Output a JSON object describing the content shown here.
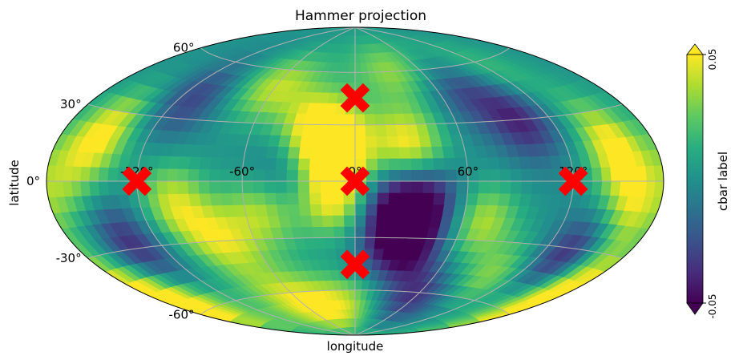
{
  "chart_data": {
    "type": "heatmap",
    "projection": "hammer",
    "title": "Hammer projection",
    "xlabel": "longitude",
    "ylabel": "latitude",
    "x_ticks": [
      -120,
      -60,
      0,
      60,
      120
    ],
    "x_tick_labels": [
      "-120°",
      "-60°",
      "0°",
      "60°",
      "120°"
    ],
    "y_ticks": [
      60,
      30,
      0,
      -30,
      -60
    ],
    "y_tick_labels": [
      "60°",
      "30°",
      "0°",
      "-30°",
      "-60°"
    ],
    "xlim": [
      -180,
      180
    ],
    "ylim": [
      -90,
      90
    ],
    "grid": true,
    "colormap": "viridis",
    "colorbar": {
      "label": "cbar label",
      "min": -0.05,
      "max": 0.05,
      "tick_labels": [
        "0.05",
        "-0.05"
      ],
      "extend": "both",
      "placement": "right"
    },
    "markers": {
      "shape": "X",
      "color": "#ff0000",
      "points": [
        {
          "lon": -120,
          "lat": 0
        },
        {
          "lon": 0,
          "lat": 0
        },
        {
          "lon": 120,
          "lat": 0
        },
        {
          "lon": 0,
          "lat": 45
        },
        {
          "lon": 0,
          "lat": -45
        }
      ]
    },
    "field": [
      {
        "lon": -150,
        "lat": 20,
        "v": 0.05
      },
      {
        "lon": -110,
        "lat": 40,
        "v": -0.03
      },
      {
        "lon": -60,
        "lat": 50,
        "v": 0.04
      },
      {
        "lon": -20,
        "lat": 30,
        "v": 0.05
      },
      {
        "lon": -10,
        "lat": 15,
        "v": 0.05
      },
      {
        "lon": 30,
        "lat": 20,
        "v": 0.05
      },
      {
        "lon": 40,
        "lat": 60,
        "v": 0.04
      },
      {
        "lon": 70,
        "lat": 50,
        "v": -0.03
      },
      {
        "lon": 100,
        "lat": 30,
        "v": -0.04
      },
      {
        "lon": 150,
        "lat": 15,
        "v": 0.05
      },
      {
        "lon": 160,
        "lat": -10,
        "v": 0.04
      },
      {
        "lon": -100,
        "lat": -10,
        "v": 0.04
      },
      {
        "lon": -50,
        "lat": -15,
        "v": 0.04
      },
      {
        "lon": -10,
        "lat": -10,
        "v": 0.05
      },
      {
        "lon": 20,
        "lat": -15,
        "v": -0.05
      },
      {
        "lon": 40,
        "lat": -10,
        "v": -0.04
      },
      {
        "lon": 70,
        "lat": -20,
        "v": 0.04
      },
      {
        "lon": 30,
        "lat": -35,
        "v": -0.05
      },
      {
        "lon": -140,
        "lat": -30,
        "v": -0.04
      },
      {
        "lon": -80,
        "lat": -30,
        "v": 0.04
      },
      {
        "lon": 140,
        "lat": -35,
        "v": -0.05
      },
      {
        "lon": 100,
        "lat": -50,
        "v": 0.04
      },
      {
        "lon": 60,
        "lat": -65,
        "v": -0.05
      },
      {
        "lon": -160,
        "lat": -55,
        "v": 0.05
      },
      {
        "lon": 165,
        "lat": -45,
        "v": 0.05
      },
      {
        "lon": -60,
        "lat": -65,
        "v": 0.04
      },
      {
        "lon": 0,
        "lat": -70,
        "v": 0.04
      },
      {
        "lon": -170,
        "lat": 0,
        "v": 0.03
      },
      {
        "lon": 120,
        "lat": 55,
        "v": 0.02
      },
      {
        "lon": -40,
        "lat": 0,
        "v": -0.02
      }
    ]
  }
}
